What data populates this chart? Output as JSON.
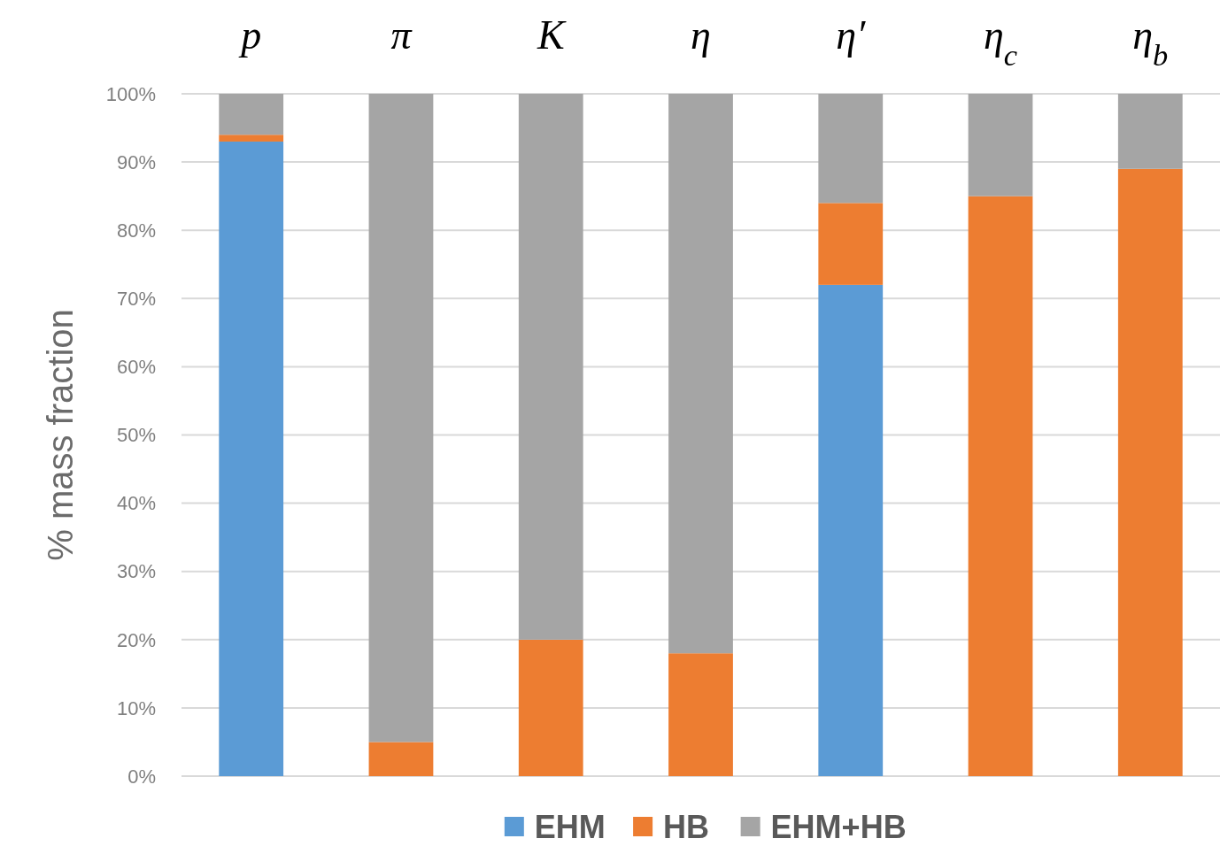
{
  "chart_data": {
    "type": "bar",
    "stacked": true,
    "categories": [
      "p",
      "π",
      "K",
      "η",
      "η′",
      "η$_{c}$",
      "η$_{b}$"
    ],
    "series": [
      {
        "name": "EHM",
        "color": "#5b9bd5",
        "values": [
          93,
          0,
          0,
          0,
          72,
          0,
          0
        ]
      },
      {
        "name": "HB",
        "color": "#ed7d31",
        "values": [
          1,
          5,
          20,
          18,
          12,
          85,
          89
        ]
      },
      {
        "name": "EHM+HB",
        "color": "#a5a5a5",
        "values": [
          6,
          95,
          80,
          82,
          16,
          15,
          11
        ]
      }
    ],
    "ylabel": "% mass fraction",
    "ylim": [
      0,
      100
    ],
    "yticks": [
      {
        "value": 0,
        "label": "0%"
      },
      {
        "value": 10,
        "label": "10%"
      },
      {
        "value": 20,
        "label": "20%"
      },
      {
        "value": 30,
        "label": "30%"
      },
      {
        "value": 40,
        "label": "40%"
      },
      {
        "value": 50,
        "label": "50%"
      },
      {
        "value": 60,
        "label": "60%"
      },
      {
        "value": 70,
        "label": "70%"
      },
      {
        "value": 80,
        "label": "80%"
      },
      {
        "value": 90,
        "label": "90%"
      },
      {
        "value": 100,
        "label": "100%"
      }
    ],
    "grid": true,
    "legend": "bottom"
  }
}
